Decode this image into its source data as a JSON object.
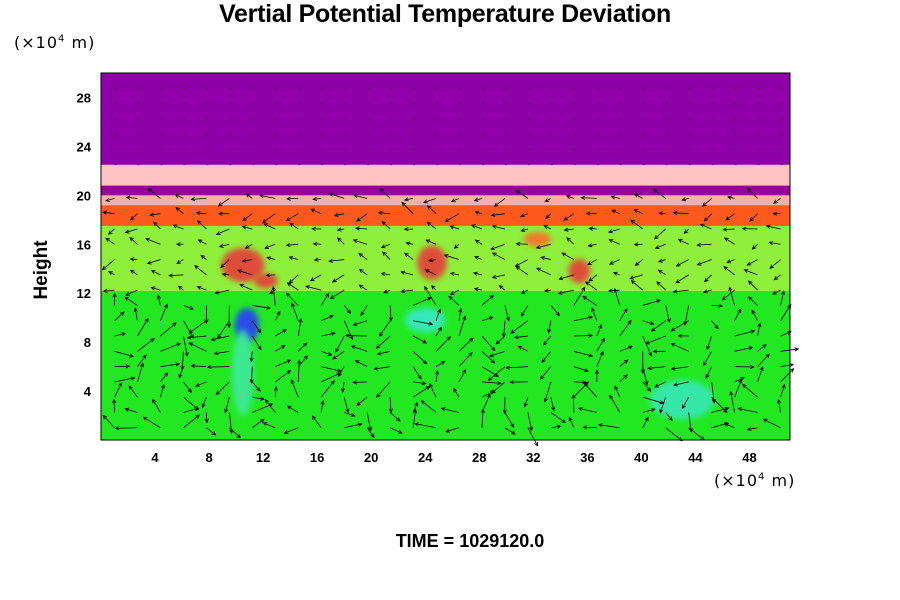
{
  "chart_data": {
    "type": "heatmap",
    "title": "Vertial Potential Temperature Deviation",
    "ylabel": "Height",
    "y_unit": {
      "prefix": "(×10",
      "exp": "4",
      "suffix": " m)"
    },
    "x_unit": {
      "prefix": "(×10",
      "exp": "4",
      "suffix": " m)"
    },
    "xlim": [
      0,
      51
    ],
    "ylim": [
      0,
      30
    ],
    "x_ticks": [
      4,
      8,
      12,
      16,
      20,
      24,
      28,
      32,
      36,
      40,
      44,
      48
    ],
    "y_ticks": [
      4,
      8,
      12,
      16,
      20,
      24,
      28
    ],
    "layers": [
      {
        "from": 0,
        "to": 12.2,
        "color": "#22e822"
      },
      {
        "from": 12.2,
        "to": 17.5,
        "color": "#8ef03a"
      },
      {
        "from": 17.5,
        "to": 19.2,
        "color": "#ff5a1e"
      },
      {
        "from": 19.2,
        "to": 20.0,
        "color": "#f5b0a8"
      },
      {
        "from": 20.0,
        "to": 20.8,
        "color": "#9a009a"
      },
      {
        "from": 20.8,
        "to": 22.5,
        "color": "#ffc2c2"
      },
      {
        "from": 22.5,
        "to": 30,
        "color": "#9000a8"
      }
    ],
    "features": [
      {
        "x": 10.5,
        "y": 14.3,
        "rx": 1.6,
        "ry": 1.4,
        "color": "#e83a3a"
      },
      {
        "x": 12.2,
        "y": 13.0,
        "rx": 0.9,
        "ry": 0.6,
        "color": "#e83a3a"
      },
      {
        "x": 24.5,
        "y": 14.5,
        "rx": 1.1,
        "ry": 1.4,
        "color": "#e83a3a"
      },
      {
        "x": 35.4,
        "y": 13.8,
        "rx": 0.8,
        "ry": 1.0,
        "color": "#e83a3a"
      },
      {
        "x": 32.3,
        "y": 16.4,
        "rx": 1.0,
        "ry": 0.6,
        "color": "#ff6a2a"
      },
      {
        "x": 10.8,
        "y": 9.4,
        "rx": 0.9,
        "ry": 1.4,
        "color": "#2a3aff"
      },
      {
        "x": 24.0,
        "y": 9.8,
        "rx": 1.5,
        "ry": 1.0,
        "color": "#38e8c8"
      },
      {
        "x": 43.0,
        "y": 3.3,
        "rx": 2.4,
        "ry": 1.6,
        "color": "#38e8b8"
      },
      {
        "x": 10.5,
        "y": 5.5,
        "rx": 0.8,
        "ry": 3.5,
        "color": "#40e8a0"
      }
    ],
    "vector_field": true,
    "time_label": "TIME = 1029120.0",
    "grid": false
  }
}
